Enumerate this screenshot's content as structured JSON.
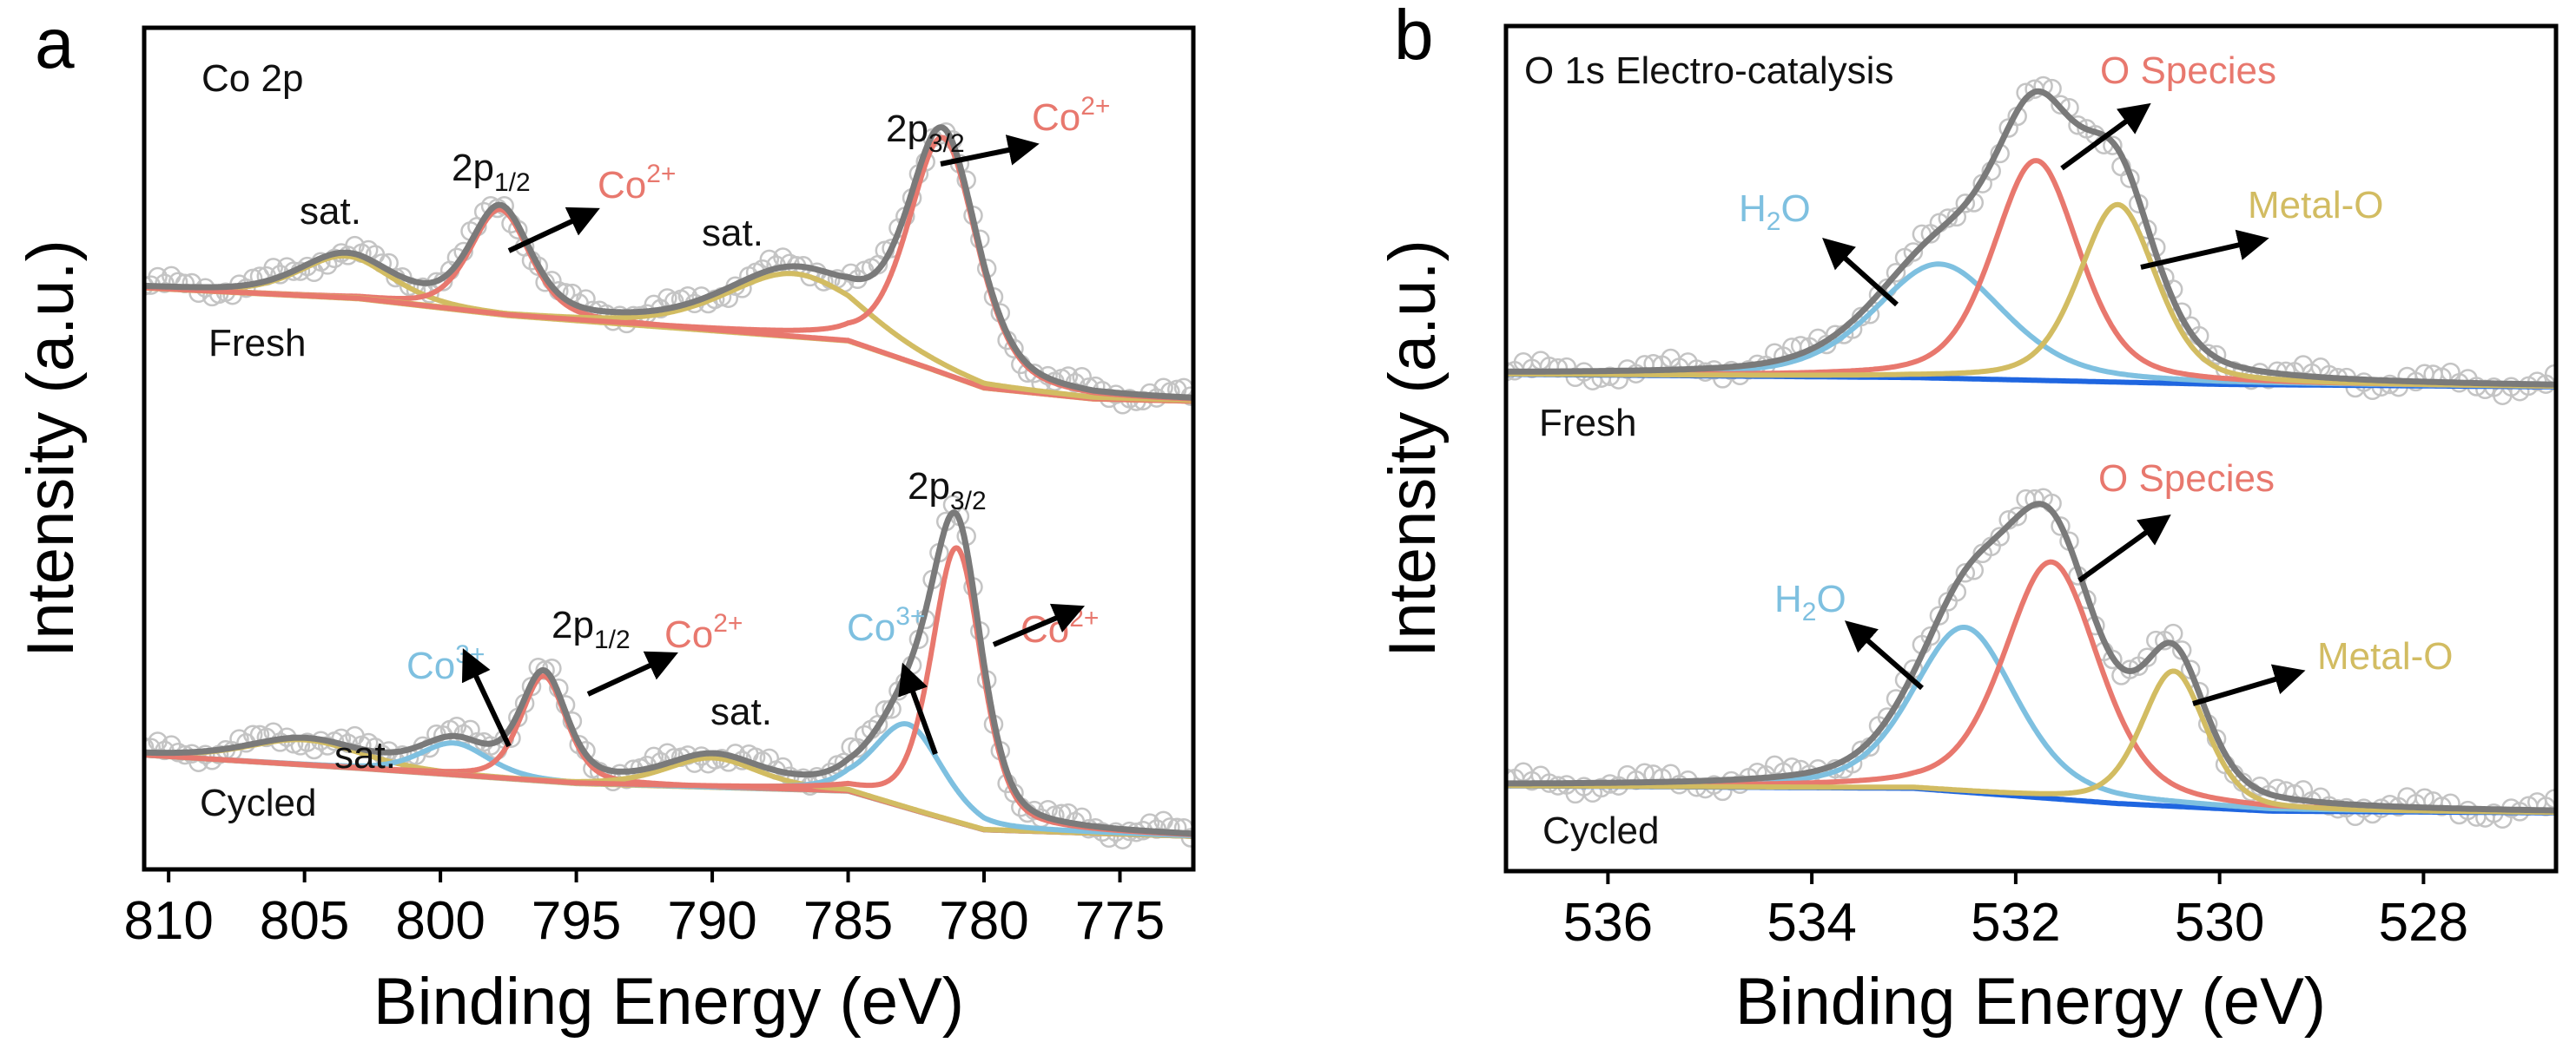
{
  "colors": {
    "envelope": "#7a7a7a",
    "co2": "#e8786e",
    "co3": "#7ec0e0",
    "sat": "#d2bc62",
    "baseline_b": "#1f66e0",
    "data": "#c4c4c4"
  },
  "panel_letters": {
    "a": "a",
    "b": "b"
  },
  "labels": {
    "a_title": "Co 2p",
    "fresh": "Fresh",
    "cycled": "Cycled",
    "sat": "sat.",
    "p12_base": "2p",
    "p12_sub": "1/2",
    "p32_base": "2p",
    "p32_sub": "3/2",
    "co": "Co",
    "co2_sup": "2+",
    "co3_sup": "3+",
    "b_title": "O 1s Electro-catalysis",
    "o_species": "O Species",
    "metal_o": "Metal-O",
    "h": "H",
    "h2o_sub": "2",
    "o": "O"
  },
  "chart_data": [
    {
      "panel": "a",
      "type": "line",
      "title": "Co 2p",
      "xlabel": "Binding Energy (eV)",
      "ylabel": "Intensity (a.u.)",
      "xlim": [
        810.9,
        772.3
      ],
      "ylim": [
        0,
        100
      ],
      "xticks": [
        810,
        805,
        800,
        795,
        790,
        785,
        780,
        775
      ],
      "spectra": [
        {
          "name": "Fresh",
          "baseline": [
            [
              811,
              69.1
            ],
            [
              803,
              67.8
            ],
            [
              797.5,
              65.8
            ],
            [
              790,
              64.0
            ],
            [
              785,
              62.8
            ],
            [
              782,
              59.5
            ],
            [
              780,
              57.2
            ],
            [
              776,
              55.9
            ],
            [
              772,
              55.6
            ]
          ],
          "components": [
            {
              "label": "sat.",
              "species": "sat",
              "center": 803.5,
              "height": 5,
              "fwhm": 4.0
            },
            {
              "label": "Co2+ 2p1/2",
              "species": "co2",
              "center": 797.8,
              "height": 12.5,
              "fwhm": 2.6
            },
            {
              "label": "sat.",
              "species": "sat",
              "center": 787.0,
              "height": 7.5,
              "fwhm": 6.0
            },
            {
              "label": "Co2+ 2p3/2",
              "species": "co2",
              "center": 781.5,
              "height": 28,
              "fwhm": 3.0
            }
          ]
        },
        {
          "name": "Cycled",
          "baseline": [
            [
              811,
              13.6
            ],
            [
              803,
              12.0
            ],
            [
              795,
              10.2
            ],
            [
              785,
              9.3
            ],
            [
              782,
              6.5
            ],
            [
              780,
              4.7
            ],
            [
              772,
              3.9
            ]
          ],
          "components": [
            {
              "label": "sat.",
              "species": "sat",
              "center": 805.0,
              "height": 3,
              "fwhm": 5.0
            },
            {
              "label": "Co3+ 2p1/2",
              "species": "co3",
              "center": 799.5,
              "height": 3.8,
              "fwhm": 3.0
            },
            {
              "label": "Co2+ 2p1/2",
              "species": "co2",
              "center": 796.2,
              "height": 12.5,
              "fwhm": 2.0
            },
            {
              "label": "sat.",
              "species": "sat",
              "center": 790.0,
              "height": 3.5,
              "fwhm": 4.0
            },
            {
              "label": "Co3+ 2p3/2",
              "species": "co3",
              "center": 782.8,
              "height": 10,
              "fwhm": 3.0
            },
            {
              "label": "Co2+ 2p3/2",
              "species": "co2",
              "center": 781.0,
              "height": 32.6,
              "fwhm": 2.2
            }
          ]
        }
      ]
    },
    {
      "panel": "b",
      "type": "line",
      "title": "O 1s Electro-catalysis",
      "xlabel": "Binding Energy (eV)",
      "ylabel": "Intensity (a.u.)",
      "xlim": [
        537.0,
        526.7
      ],
      "ylim": [
        0,
        100
      ],
      "xticks": [
        536,
        534,
        532,
        530,
        528
      ],
      "spectra": [
        {
          "name": "Fresh",
          "baseline": [
            [
              537,
              58.8
            ],
            [
              533,
              58.4
            ],
            [
              530,
              57.6
            ],
            [
              526.7,
              57.3
            ]
          ],
          "components": [
            {
              "label": "H2O",
              "species": "co3",
              "center": 532.75,
              "height": 13.5,
              "fwhm": 1.5
            },
            {
              "label": "O Species",
              "species": "co2",
              "center": 531.8,
              "height": 26,
              "fwhm": 1.0
            },
            {
              "label": "Metal-O",
              "species": "sat",
              "center": 531.0,
              "height": 21,
              "fwhm": 0.9
            }
          ]
        },
        {
          "name": "Cycled",
          "baseline": [
            [
              537,
              10.1
            ],
            [
              533,
              9.8
            ],
            [
              531,
              8.0
            ],
            [
              529.5,
              7.1
            ],
            [
              526.7,
              6.9
            ]
          ],
          "components": [
            {
              "label": "H2O",
              "species": "co3",
              "center": 532.5,
              "height": 19.5,
              "fwhm": 1.2
            },
            {
              "label": "O Species",
              "species": "co2",
              "center": 531.65,
              "height": 28,
              "fwhm": 1.1
            },
            {
              "label": "Metal-O",
              "species": "sat",
              "center": 530.45,
              "height": 16,
              "fwhm": 0.75
            }
          ]
        }
      ]
    }
  ]
}
